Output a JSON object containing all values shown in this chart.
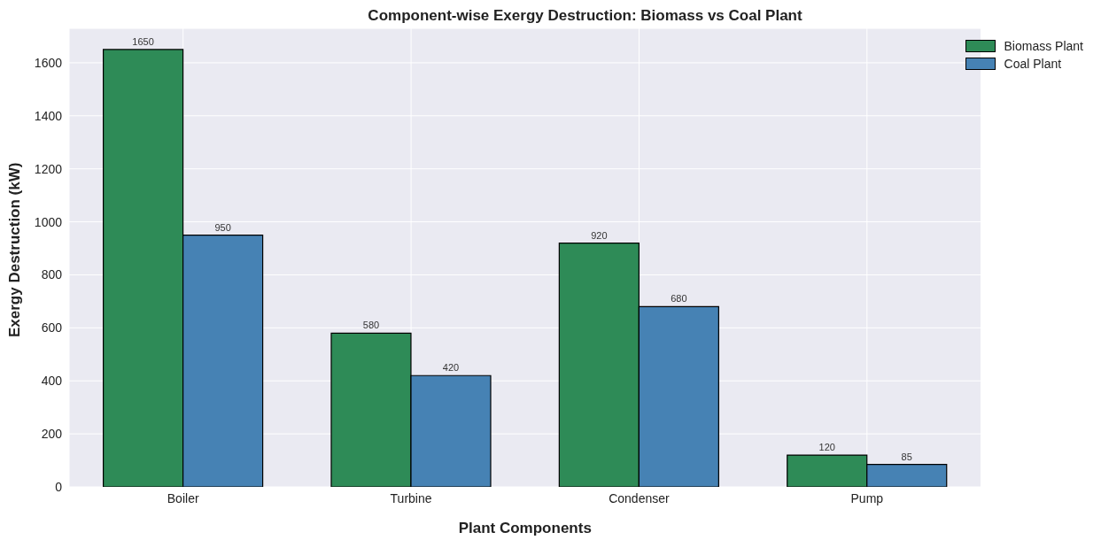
{
  "chart_data": {
    "type": "bar",
    "title": "Component-wise Exergy Destruction: Biomass vs Coal Plant",
    "xlabel": "Plant Components",
    "ylabel": "Exergy Destruction (kW)",
    "categories": [
      "Boiler",
      "Turbine",
      "Condenser",
      "Pump"
    ],
    "series": [
      {
        "name": "Biomass Plant",
        "color": "#2e8b57",
        "values": [
          1650,
          580,
          920,
          120
        ]
      },
      {
        "name": "Coal Plant",
        "color": "#4682b4",
        "values": [
          950,
          420,
          680,
          85
        ]
      }
    ],
    "ylim": [
      0,
      1730
    ],
    "yticks": [
      0,
      200,
      400,
      600,
      800,
      1000,
      1200,
      1400,
      1600
    ],
    "grid": true,
    "legend": "top right",
    "data_labels": true
  }
}
